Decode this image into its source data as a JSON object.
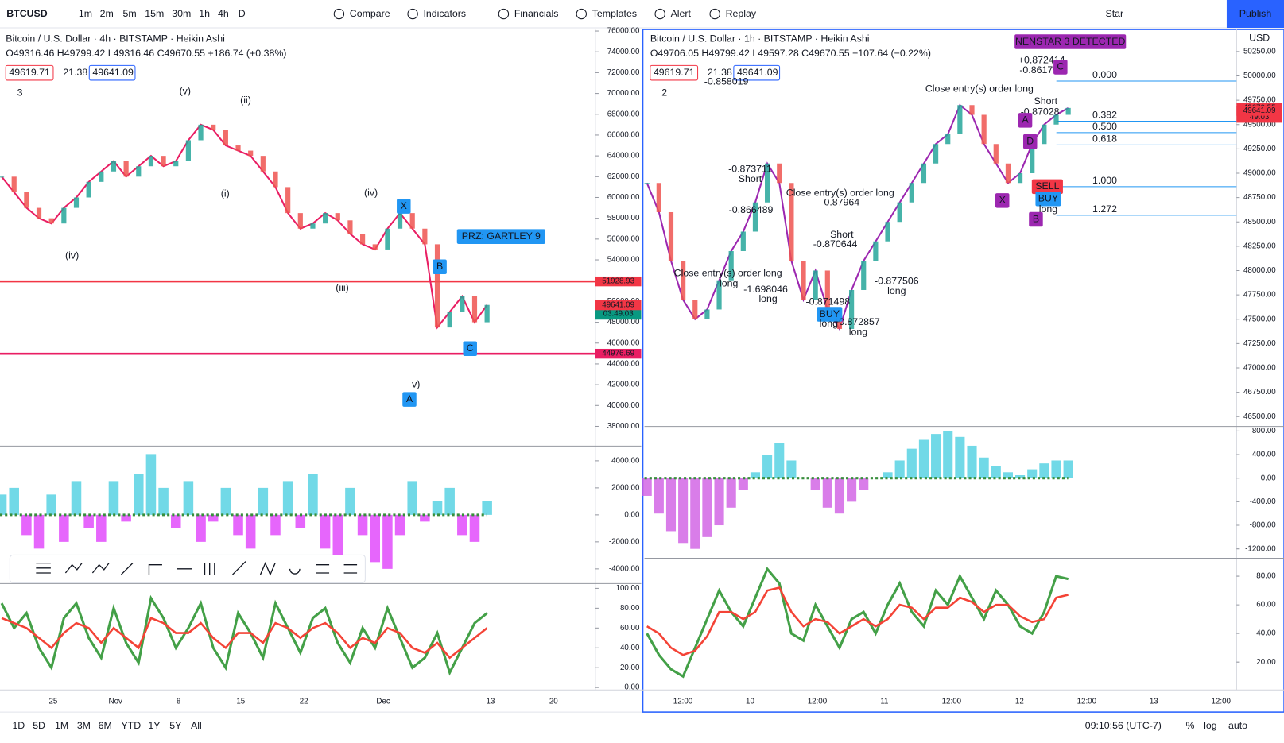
{
  "toolbar": {
    "symbol": "BTCUSD",
    "intervals": [
      "1m",
      "2m",
      "5m",
      "15m",
      "30m",
      "1h",
      "4h",
      "D"
    ],
    "buttons": [
      "Compare",
      "Indicators",
      "Financials",
      "Templates",
      "Alert",
      "Replay"
    ],
    "star": "Star",
    "publish": "Publish"
  },
  "charts": [
    {
      "title": "Bitcoin / U.S. Dollar · 4h · BITSTAMP · Heikin Ashi",
      "ohlc": "O49316.46 H49799.42 L49316.46 C49670.55 +186.74 (+0.38%)",
      "badges": [
        "49619.71",
        "21.38",
        "49641.09"
      ],
      "collapse": "3",
      "price": {
        "type": "line",
        "color": "#e91e63",
        "values": [
          62000,
          60500,
          59000,
          58000,
          57500,
          59000,
          60000,
          61500,
          62500,
          63500,
          62000,
          63000,
          64000,
          63000,
          63500,
          65500,
          67000,
          66500,
          65000,
          64500,
          64000,
          62500,
          61000,
          58500,
          57000,
          57500,
          58500,
          57800,
          56500,
          55500,
          55000,
          57000,
          58500,
          57000,
          55500,
          47500,
          49000,
          50500,
          48000,
          49670.55
        ],
        "ylim": [
          36100,
          76150
        ],
        "yticks": [
          {
            "value": 76000,
            "label": "76000.00"
          },
          {
            "value": 74000,
            "label": "74000.00"
          },
          {
            "value": 72000,
            "label": "72000.00"
          },
          {
            "value": 70000,
            "label": "70000.00"
          },
          {
            "value": 68000,
            "label": "68000.00"
          },
          {
            "value": 66000,
            "label": "66000.00"
          },
          {
            "value": 64000,
            "label": "64000.00"
          },
          {
            "value": 62000,
            "label": "62000.00"
          },
          {
            "value": 60000,
            "label": "60000.00"
          },
          {
            "value": 58000,
            "label": "58000.00"
          },
          {
            "value": 56000,
            "label": "56000.00"
          },
          {
            "value": 54000,
            "label": "54000.00"
          },
          {
            "value": 52000,
            "label": "52000.00"
          },
          {
            "value": 50000,
            "label": "50000.00"
          },
          {
            "value": 48000,
            "label": "48000.00"
          },
          {
            "value": 46000,
            "label": "46000.00"
          },
          {
            "value": 44000,
            "label": "44000.00"
          },
          {
            "value": 42000,
            "label": "42000.00"
          },
          {
            "value": 40000,
            "label": "40000.00"
          },
          {
            "value": 38000,
            "label": "38000.00"
          }
        ],
        "levels": [
          {
            "value": 51928.93,
            "color": "#f23645",
            "line": true
          },
          {
            "value": 49670.55,
            "color": "#089981",
            "countdown": "03:49:03"
          },
          {
            "value": 49641.09,
            "color": "#f23645"
          },
          {
            "value": 44976.69,
            "color": "#e91e63",
            "line": true
          }
        ]
      },
      "annotations": [
        "(v)",
        "(ii)",
        "(i)",
        "(iv)",
        "(iii)",
        "(iv)",
        "v)",
        "A",
        "B",
        "C",
        "X",
        "PRZ: GARTLEY 9"
      ],
      "oscillator": {
        "type": "bar",
        "up_color": "#4dd0e1",
        "down_color": "#e040fb",
        "values": [
          1500,
          2000,
          -1500,
          -2500,
          1500,
          -2000,
          2500,
          -1000,
          -2000,
          2500,
          -500,
          3000,
          4500,
          2000,
          -1000,
          2500,
          -2000,
          -500,
          2000,
          -1500,
          -2500,
          2000,
          -1500,
          2500,
          -1000,
          3000,
          -2500,
          -3000,
          2000,
          -1500,
          -3500,
          -4000,
          -1500,
          2500,
          -500,
          1000,
          2000,
          -1500,
          -2000,
          1000
        ],
        "ylim": [
          -5030,
          4909
        ],
        "yticks": [
          {
            "value": 4000,
            "label": "4000.00"
          },
          {
            "value": 2000,
            "label": "2000.00"
          },
          {
            "value": 0,
            "label": "0.00"
          },
          {
            "value": -2000,
            "label": "-2000.00"
          },
          {
            "value": -4000,
            "label": "-4000.00"
          }
        ]
      },
      "stoch": {
        "type": "line",
        "series": [
          {
            "color": "#43a047",
            "values": [
              85,
              60,
              75,
              40,
              20,
              70,
              85,
              50,
              30,
              80,
              45,
              25,
              90,
              70,
              40,
              60,
              85,
              40,
              20,
              75,
              55,
              30,
              85,
              60,
              35,
              70,
              80,
              45,
              25,
              60,
              40,
              80,
              50,
              20,
              30,
              55,
              15,
              40,
              65,
              75
            ]
          },
          {
            "color": "#f44336",
            "values": [
              70,
              65,
              60,
              50,
              40,
              55,
              65,
              60,
              45,
              60,
              50,
              40,
              70,
              65,
              55,
              55,
              65,
              50,
              40,
              55,
              55,
              45,
              65,
              60,
              50,
              60,
              65,
              55,
              40,
              50,
              45,
              60,
              55,
              40,
              35,
              45,
              30,
              40,
              50,
              60
            ]
          }
        ],
        "ylim": [
          -2.5,
          104
        ],
        "yticks": [
          {
            "value": 100,
            "label": "100.00"
          },
          {
            "value": 80,
            "label": "80.00"
          },
          {
            "value": 60,
            "label": "60.00"
          },
          {
            "value": 40,
            "label": "40.00"
          },
          {
            "value": 20,
            "label": "20.00"
          },
          {
            "value": 0,
            "label": "0.00"
          }
        ]
      },
      "dates": [
        "25",
        "Nov",
        "8",
        "15",
        "22",
        "Dec",
        "13",
        "20"
      ]
    },
    {
      "title": "Bitcoin / U.S. Dollar · 1h · BITSTAMP · Heikin Ashi",
      "ohlc": "O49706.05 H49799.42 L49597.28 C49670.55 −107.64 (−0.22%)",
      "badges": [
        "49619.71",
        "21.38",
        "49641.09"
      ],
      "collapse": "2",
      "currency": "USD",
      "price": {
        "type": "line",
        "color": "#9c27b0",
        "values": [
          48900,
          48600,
          48100,
          47700,
          47500,
          47600,
          47900,
          48200,
          48400,
          48700,
          49100,
          48900,
          48100,
          47700,
          48000,
          47600,
          47400,
          47800,
          48100,
          48300,
          48500,
          48700,
          48900,
          49100,
          49300,
          49400,
          49700,
          49600,
          49300,
          49100,
          48900,
          49000,
          49300,
          49500,
          49600,
          49670.55
        ],
        "ylim": [
          46407,
          50477
        ],
        "yticks": [
          {
            "value": 50250,
            "label": "50250.00"
          },
          {
            "value": 50000,
            "label": "50000.00"
          },
          {
            "value": 49750,
            "label": "49750.00"
          },
          {
            "value": 49500,
            "label": "49500.00"
          },
          {
            "value": 49250,
            "label": "49250.00"
          },
          {
            "value": 49000,
            "label": "49000.00"
          },
          {
            "value": 48750,
            "label": "48750.00"
          },
          {
            "value": 48500,
            "label": "48500.00"
          },
          {
            "value": 48250,
            "label": "48250.00"
          },
          {
            "value": 48000,
            "label": "48000.00"
          },
          {
            "value": 47750,
            "label": "47750.00"
          },
          {
            "value": 47500,
            "label": "47500.00"
          },
          {
            "value": 47250,
            "label": "47250.00"
          },
          {
            "value": 47000,
            "label": "47000.00"
          },
          {
            "value": 46750,
            "label": "46750.00"
          },
          {
            "value": 46500,
            "label": "46500.00"
          }
        ],
        "levels": [
          {
            "value": 49670.55,
            "color": "#f23645",
            "countdown": "49:03"
          },
          {
            "value": 49641.09,
            "color": "#f23645"
          }
        ],
        "fib": [
          {
            "label": "0.000",
            "price": 49947
          },
          {
            "label": "0.382",
            "price": 49535
          },
          {
            "label": "0.500",
            "price": 49417
          },
          {
            "label": "0.618",
            "price": 49291
          },
          {
            "label": "1.000",
            "price": 48862
          },
          {
            "label": "1.272",
            "price": 48568
          }
        ]
      },
      "annotations": [
        "NENSTAR 3 DETECTED",
        "-0.873711",
        "Short",
        "-0.866489",
        "Close entry(s) order long",
        "-0.87964",
        "Short",
        "-0.870644",
        "Close entry(s) order long",
        "long",
        "-1.698046",
        "long",
        "-0.871498",
        "BUY",
        "long",
        "+0.872857",
        "long",
        "-0.877506",
        "long",
        "+0.872414",
        "-0.861759",
        "Short",
        "-0.87028",
        "Close entry(s) order long",
        "X",
        "A",
        "B",
        "C",
        "D",
        "SELL",
        "BUY",
        "long",
        "-0.858019"
      ],
      "oscillator": {
        "type": "bar",
        "up_color": "#4dd0e1",
        "down_color": "#d05ce3",
        "values": [
          -300,
          -600,
          -900,
          -1100,
          -1200,
          -1000,
          -800,
          -500,
          -200,
          100,
          400,
          600,
          300,
          0,
          -200,
          -500,
          -600,
          -400,
          -200,
          0,
          100,
          300,
          500,
          650,
          750,
          800,
          700,
          550,
          350,
          200,
          100,
          50,
          150,
          250,
          300,
          300
        ],
        "ylim": [
          -1331,
          850
        ],
        "yticks": [
          {
            "value": 800,
            "label": "800.00"
          },
          {
            "value": 400,
            "label": "400.00"
          },
          {
            "value": 0,
            "label": "0.00"
          },
          {
            "value": -400,
            "label": "-400.00"
          },
          {
            "value": -800,
            "label": "-800.00"
          },
          {
            "value": -1200,
            "label": "-1200.00"
          }
        ]
      },
      "stoch": {
        "type": "line",
        "series": [
          {
            "color": "#43a047",
            "values": [
              40,
              25,
              15,
              10,
              30,
              50,
              70,
              55,
              45,
              65,
              85,
              75,
              40,
              35,
              60,
              45,
              30,
              50,
              55,
              40,
              60,
              75,
              55,
              45,
              70,
              60,
              80,
              65,
              50,
              70,
              60,
              45,
              40,
              55,
              80,
              78
            ]
          },
          {
            "color": "#f44336",
            "values": [
              45,
              40,
              30,
              25,
              28,
              38,
              55,
              55,
              50,
              55,
              70,
              72,
              55,
              45,
              50,
              48,
              40,
              45,
              50,
              45,
              50,
              60,
              58,
              50,
              58,
              58,
              65,
              62,
              55,
              60,
              60,
              52,
              48,
              50,
              65,
              67
            ]
          }
        ],
        "ylim": [
          1.1,
          91.4
        ],
        "yticks": [
          {
            "value": 80,
            "label": "80.00"
          },
          {
            "value": 60,
            "label": "60.00"
          },
          {
            "value": 40,
            "label": "40.00"
          },
          {
            "value": 20,
            "label": "20.00"
          }
        ]
      },
      "dates": [
        "12:00",
        "10",
        "12:00",
        "11",
        "12:00",
        "12",
        "12:00",
        "13",
        "12:00"
      ]
    }
  ],
  "footer": {
    "ranges": [
      "1D",
      "5D",
      "1M",
      "3M",
      "6M",
      "YTD",
      "1Y",
      "5Y",
      "All"
    ],
    "clock": "09:10:56 (UTC-7)",
    "options": [
      "%",
      "log",
      "auto"
    ]
  }
}
